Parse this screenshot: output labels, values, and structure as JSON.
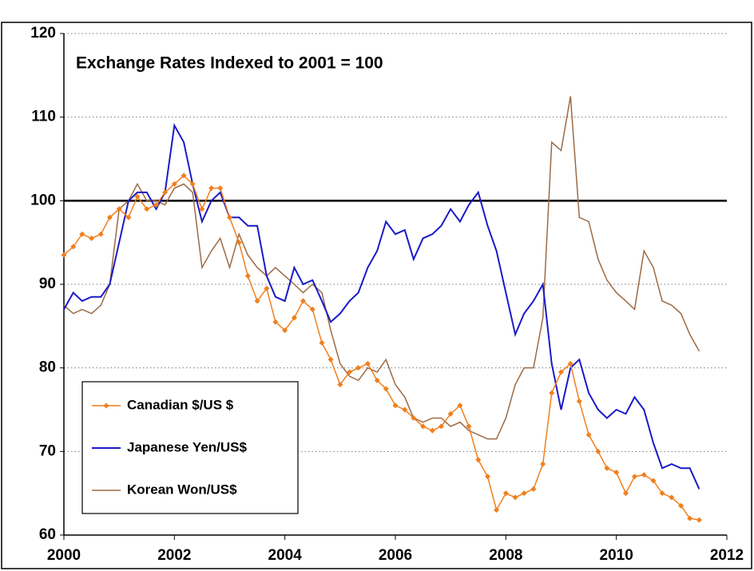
{
  "chart_data": {
    "type": "line",
    "annotation": "Exchange Rates Indexed to 2001 = 100",
    "x": [
      2000,
      2000.17,
      2000.33,
      2000.5,
      2000.67,
      2000.83,
      2001,
      2001.17,
      2001.33,
      2001.5,
      2001.67,
      2001.83,
      2002,
      2002.17,
      2002.33,
      2002.5,
      2002.67,
      2002.83,
      2003,
      2003.17,
      2003.33,
      2003.5,
      2003.67,
      2003.83,
      2004,
      2004.17,
      2004.33,
      2004.5,
      2004.67,
      2004.83,
      2005,
      2005.17,
      2005.33,
      2005.5,
      2005.67,
      2005.83,
      2006,
      2006.17,
      2006.33,
      2006.5,
      2006.67,
      2006.83,
      2007,
      2007.17,
      2007.33,
      2007.5,
      2007.67,
      2007.83,
      2008,
      2008.17,
      2008.33,
      2008.5,
      2008.67,
      2008.83,
      2009,
      2009.17,
      2009.33,
      2009.5,
      2009.67,
      2009.83,
      2010,
      2010.17,
      2010.33,
      2010.5,
      2010.67,
      2010.83,
      2011,
      2011.17,
      2011.33,
      2011.5
    ],
    "series": [
      {
        "name": "Canadian $/US $",
        "color": "#f07f1c",
        "marker": "diamond",
        "values": [
          93.5,
          94.5,
          96,
          95.5,
          96,
          98,
          99,
          98,
          100.5,
          99,
          99.5,
          101,
          102,
          103,
          102,
          99,
          101.5,
          101.5,
          98,
          95,
          91,
          88,
          89.5,
          85.5,
          84.5,
          86,
          88,
          87,
          83,
          81,
          78,
          79.5,
          80,
          80.5,
          78.5,
          77.5,
          75.5,
          75,
          74,
          73,
          72.5,
          73,
          74.5,
          75.5,
          73,
          69,
          67,
          63,
          65,
          64.5,
          65,
          65.5,
          68.5,
          77,
          79.5,
          80.5,
          76,
          72,
          70,
          68,
          67.5,
          65,
          67,
          67.2,
          66.5,
          65,
          64.5,
          63.5,
          62,
          61.8
        ]
      },
      {
        "name": "Japanese Yen/US$",
        "color": "#1a1ac8",
        "values": [
          87,
          89,
          88,
          88.5,
          88.5,
          90,
          95,
          100,
          101,
          101,
          99,
          101,
          109,
          107,
          102,
          97.5,
          100,
          101,
          98,
          98,
          97,
          97,
          91,
          88.5,
          88,
          92,
          90,
          90.5,
          88,
          85.5,
          86.5,
          88,
          89,
          92,
          94,
          97.5,
          96,
          96.5,
          93,
          95.5,
          96,
          97,
          99,
          97.5,
          99.5,
          101,
          97,
          94,
          89,
          84,
          86.5,
          88,
          90,
          80.5,
          75,
          80,
          81,
          77,
          75,
          74,
          75,
          74.5,
          76.5,
          75,
          71,
          68,
          68.5,
          68,
          68,
          65.5
        ]
      },
      {
        "name": "Korean Won/US$",
        "color": "#9c6a44",
        "values": [
          87.5,
          86.5,
          87,
          86.5,
          87.5,
          90,
          99,
          100,
          102,
          100,
          100,
          99.5,
          101.5,
          102,
          101,
          92,
          94,
          95.5,
          92,
          96,
          93.5,
          92,
          91,
          92,
          91,
          90,
          89,
          90,
          89,
          84.5,
          80.5,
          79,
          78.5,
          80,
          79.5,
          81,
          78,
          76.5,
          74,
          73.5,
          74,
          74,
          73,
          73.5,
          72.5,
          72,
          71.5,
          71.5,
          74,
          78,
          80,
          80,
          86,
          107,
          106,
          112.5,
          98,
          97.5,
          93,
          90.5,
          89,
          88,
          87,
          94,
          92,
          88,
          87.5,
          86.5,
          84,
          82
        ]
      }
    ],
    "xlim": [
      2000,
      2012
    ],
    "xticks": [
      2000,
      2002,
      2004,
      2006,
      2008,
      2010,
      2012
    ],
    "ylim": [
      60,
      120
    ],
    "yticks": [
      60,
      70,
      80,
      90,
      100,
      110,
      120
    ],
    "reference_line": 100,
    "grid": true,
    "legend": "lower left"
  }
}
